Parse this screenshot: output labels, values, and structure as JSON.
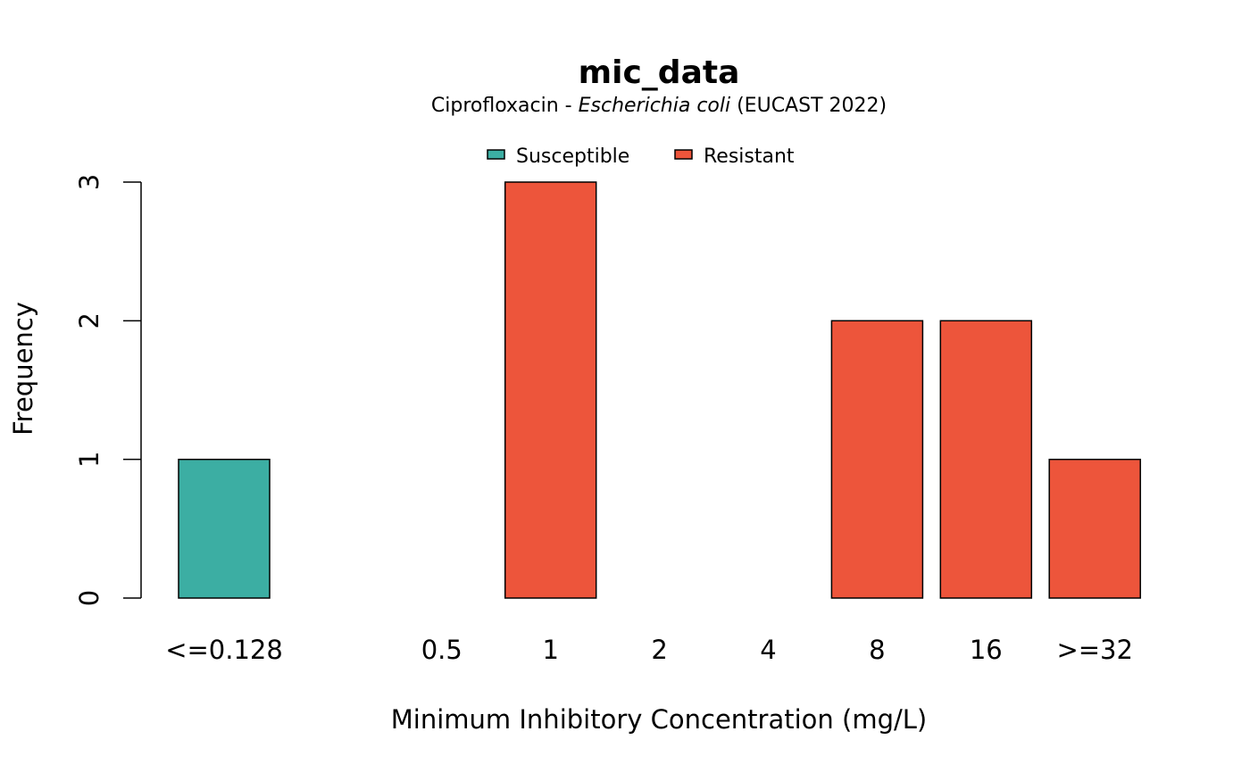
{
  "chart_data": {
    "type": "bar",
    "title": "mic_data",
    "subtitle": {
      "prefix": "Ciprofloxacin - ",
      "organism": "Escherichia coli",
      "suffix": " (EUCAST 2022)"
    },
    "xlabel": "Minimum Inhibitory Concentration (mg/L)",
    "ylabel": "Frequency",
    "ylim": [
      0,
      3
    ],
    "yticks": [
      0,
      1,
      2,
      3
    ],
    "categories": [
      "<=0.128",
      "",
      "0.5",
      "1",
      "2",
      "4",
      "8",
      "16",
      ">=32"
    ],
    "values": [
      1,
      0,
      0,
      3,
      0,
      0,
      2,
      2,
      1
    ],
    "interpretation": [
      "S",
      "R",
      "R",
      "R",
      "R",
      "R",
      "R",
      "R",
      "R"
    ],
    "legend": {
      "position": "top-center",
      "items": [
        {
          "key": "S",
          "label": "Susceptible",
          "color": "#3CAEA3"
        },
        {
          "key": "R",
          "label": "Resistant",
          "color": "#ED553B"
        }
      ]
    },
    "grid": false
  }
}
